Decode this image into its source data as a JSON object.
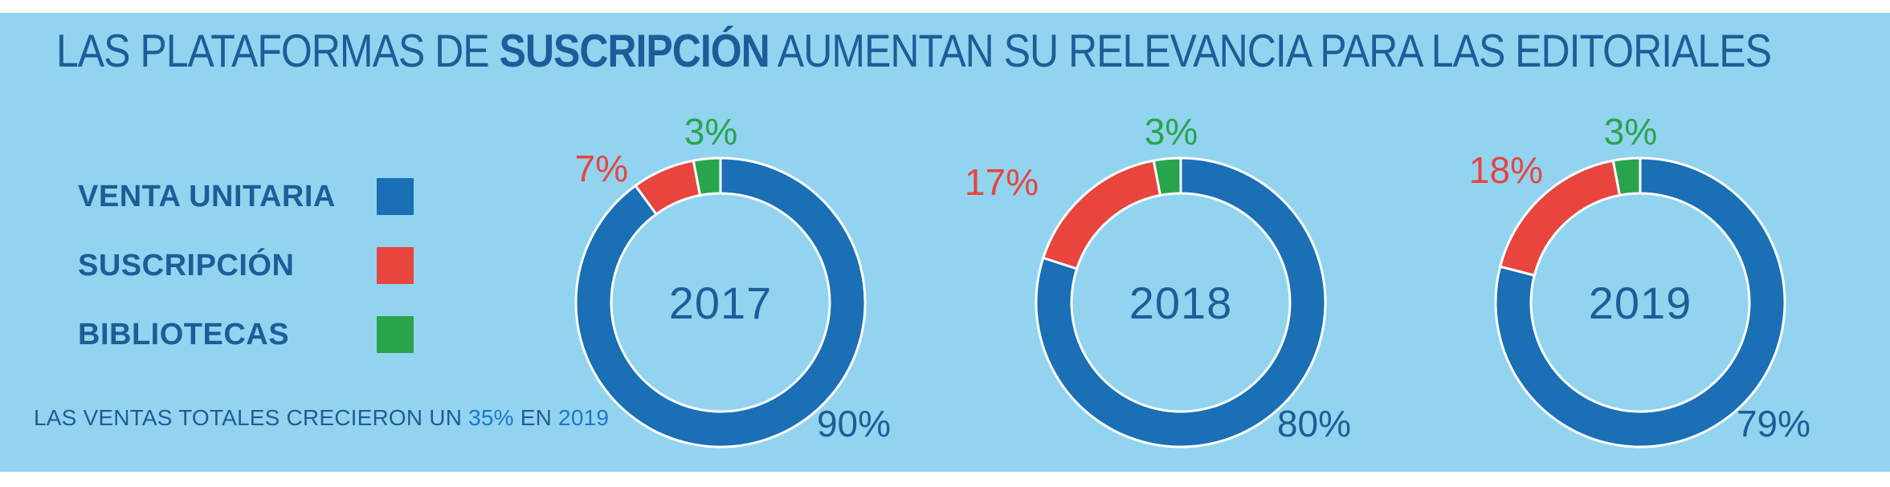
{
  "title": {
    "pre": "LAS PLATAFORMAS DE ",
    "bold": "SUSCRIPCIÓN",
    "post": " AUMENTAN SU RELEVANCIA PARA LAS EDITORIALES"
  },
  "legend": {
    "items": [
      {
        "key": "venta-unitaria",
        "label": "VENTA UNITARIA",
        "color": "#1A6FB5"
      },
      {
        "key": "suscripcion",
        "label": "SUSCRIPCIÓN",
        "color": "#E7453E"
      },
      {
        "key": "bibliotecas",
        "label": "BIBLIOTECAS",
        "color": "#29A44D"
      }
    ]
  },
  "note": {
    "pre": "LAS VENTAS TOTALES CRECIERON UN ",
    "highlight1": "35%",
    "mid": " EN ",
    "highlight2": "2019"
  },
  "colors": {
    "background_panel": "#92D4F0",
    "top_strip": "#FFFFFF",
    "dark_blue_text": "#1E5C99",
    "accent_bright_blue": "#1C78C8",
    "segment_stroke": "#FFFFFF"
  },
  "chart_data": {
    "type": "pie",
    "subtype": "donut",
    "unit": "%",
    "title": "LAS PLATAFORMAS DE SUSCRIPCIÓN AUMENTAN SU RELEVANCIA PARA LAS EDITORIALES",
    "annotation": "LAS VENTAS TOTALES CRECIERON UN 35% EN 2019",
    "categories": [
      "VENTA UNITARIA",
      "SUSCRIPCIÓN",
      "BIBLIOTECAS"
    ],
    "layout": {
      "legend_position": "left",
      "start_angle_deg": 0,
      "direction": "clockwise",
      "outer_radius_px": 180,
      "inner_radius_px": 136
    },
    "charts": [
      {
        "center_label": "2017",
        "segments": [
          {
            "key": "venta-unitaria",
            "label": "VENTA UNITARIA",
            "value": 90,
            "display": "90%",
            "color": "#1A6FB5"
          },
          {
            "key": "suscripcion",
            "label": "SUSCRIPCIÓN",
            "value": 7,
            "display": "7%",
            "color": "#E7453E"
          },
          {
            "key": "bibliotecas",
            "label": "BIBLIOTECAS",
            "value": 3,
            "display": "3%",
            "color": "#29A44D"
          }
        ]
      },
      {
        "center_label": "2018",
        "segments": [
          {
            "key": "venta-unitaria",
            "label": "VENTA UNITARIA",
            "value": 80,
            "display": "80%",
            "color": "#1A6FB5"
          },
          {
            "key": "suscripcion",
            "label": "SUSCRIPCIÓN",
            "value": 17,
            "display": "17%",
            "color": "#E7453E"
          },
          {
            "key": "bibliotecas",
            "label": "BIBLIOTECAS",
            "value": 3,
            "display": "3%",
            "color": "#29A44D"
          }
        ]
      },
      {
        "center_label": "2019",
        "segments": [
          {
            "key": "venta-unitaria",
            "label": "VENTA UNITARIA",
            "value": 79,
            "display": "79%",
            "color": "#1A6FB5"
          },
          {
            "key": "suscripcion",
            "label": "SUSCRIPCIÓN",
            "value": 18,
            "display": "18%",
            "color": "#E7453E"
          },
          {
            "key": "bibliotecas",
            "label": "BIBLIOTECAS",
            "value": 3,
            "display": "3%",
            "color": "#29A44D"
          }
        ]
      }
    ]
  }
}
